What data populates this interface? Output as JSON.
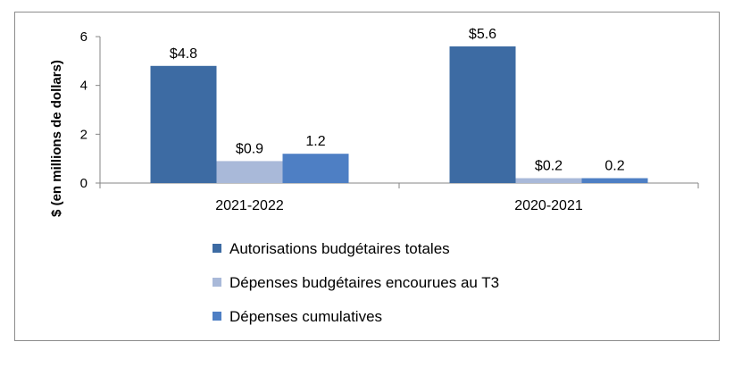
{
  "chart_data": {
    "type": "bar",
    "ylabel": "$ (en millions de dollars)",
    "xlabel": "",
    "ylim": [
      0,
      6
    ],
    "yticks": [
      "0",
      "2",
      "4",
      "6"
    ],
    "grid": false,
    "legend_position": "bottom",
    "categories": [
      "2021-2022",
      "2020-2021"
    ],
    "series": [
      {
        "name": "Autorisations budgétaires totales",
        "values": [
          4.8,
          5.6
        ],
        "labels": [
          "$4.8",
          "$5.6"
        ],
        "color": "#3d6ba3"
      },
      {
        "name": "Dépenses budgétaires encourues au T3",
        "values": [
          0.9,
          0.2
        ],
        "labels": [
          "$0.9",
          "$0.2"
        ],
        "color": "#a9b9d9"
      },
      {
        "name": "Dépenses cumulatives",
        "values": [
          1.2,
          0.2
        ],
        "labels": [
          "1.2",
          "0.2"
        ],
        "color": "#4e7fc4"
      }
    ]
  }
}
